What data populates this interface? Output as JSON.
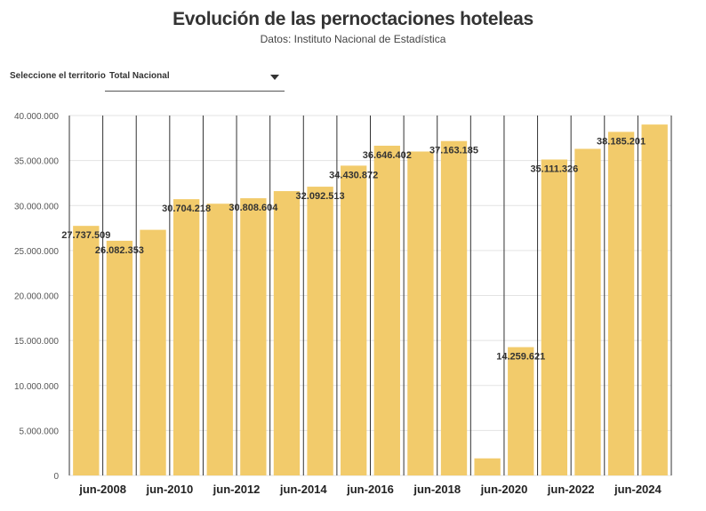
{
  "header": {
    "title": "Evolución de las pernoctaciones hoteleas",
    "subtitle": "Datos: Instituto Nacional de Estadística"
  },
  "selector": {
    "label": "Seleccione el territorio",
    "value": "Total Nacional",
    "icon": "chevron-down-icon"
  },
  "colors": {
    "bar": "#f2cb6b",
    "vline": "#333333",
    "grid": "#e3e3e3"
  },
  "chart_data": {
    "type": "bar",
    "x_tick_labels": [
      "jun-2008",
      "jun-2010",
      "jun-2012",
      "jun-2014",
      "jun-2016",
      "jun-2018",
      "jun-2020",
      "jun-2022",
      "jun-2024"
    ],
    "y_tick_labels": [
      "0",
      "5.000.000",
      "10.000.000",
      "15.000.000",
      "20.000.000",
      "25.000.000",
      "30.000.000",
      "35.000.000",
      "40.000.000"
    ],
    "ylim": [
      0,
      40000000
    ],
    "grid": true,
    "bars": [
      {
        "period": "2008",
        "value": 27737509,
        "label": "27.737.509"
      },
      {
        "period": "2009",
        "value": 26082353,
        "label": "26.082.353"
      },
      {
        "period": "2010",
        "value": 27300000,
        "label": ""
      },
      {
        "period": "2011",
        "value": 30704218,
        "label": "30.704.218"
      },
      {
        "period": "2012",
        "value": 30200000,
        "label": ""
      },
      {
        "period": "2013",
        "value": 30808604,
        "label": "30.808.604"
      },
      {
        "period": "2014",
        "value": 31600000,
        "label": ""
      },
      {
        "period": "2015",
        "value": 32092513,
        "label": "32.092.513"
      },
      {
        "period": "2016",
        "value": 34430872,
        "label": "34.430.872"
      },
      {
        "period": "2017",
        "value": 36646402,
        "label": "36.646.402"
      },
      {
        "period": "2018",
        "value": 36000000,
        "label": ""
      },
      {
        "period": "2019",
        "value": 37163185,
        "label": "37.163.185"
      },
      {
        "period": "2020",
        "value": 1900000,
        "label": ""
      },
      {
        "period": "2021",
        "value": 14259621,
        "label": "14.259.621"
      },
      {
        "period": "2022",
        "value": 35111326,
        "label": "35.111.326"
      },
      {
        "period": "2023",
        "value": 36300000,
        "label": ""
      },
      {
        "period": "2024",
        "value": 38185201,
        "label": "38.185.201"
      },
      {
        "period": "2025",
        "value": 39000000,
        "label": ""
      }
    ]
  }
}
